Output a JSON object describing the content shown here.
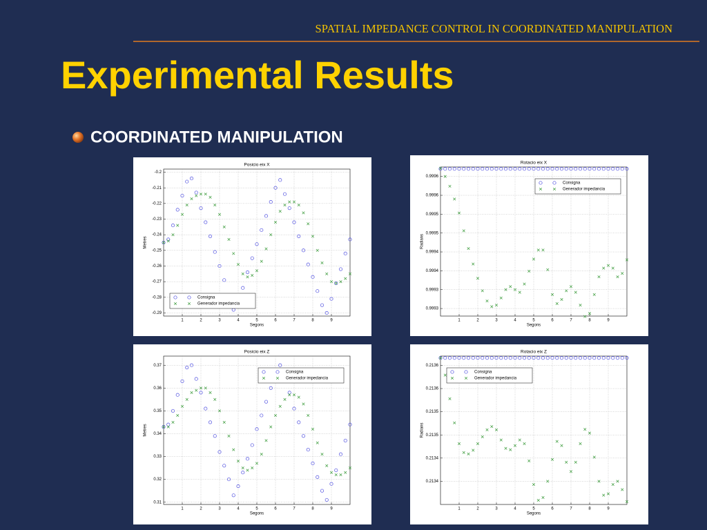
{
  "header": "SPATIAL IMPEDANCE CONTROL IN COORDINATED MANIPULATION",
  "title": "Experimental Results",
  "bullet": "COORDINATED MANIPULATION",
  "chart_data": [
    {
      "type": "scatter",
      "title": "Posicio eix X",
      "x_label": "Segons",
      "y_label": "Metres",
      "x": [
        0,
        0.25,
        0.5,
        0.75,
        1,
        1.25,
        1.5,
        1.75,
        2,
        2.25,
        2.5,
        2.75,
        3,
        3.25,
        3.5,
        3.75,
        4,
        4.25,
        4.5,
        4.75,
        5,
        5.25,
        5.5,
        5.75,
        6,
        6.25,
        6.5,
        6.75,
        7,
        7.25,
        7.5,
        7.75,
        8,
        8.25,
        8.5,
        8.75,
        9,
        9.25,
        9.5,
        9.75,
        10
      ],
      "xlim": [
        0,
        10
      ],
      "xticks": [
        1,
        2,
        3,
        4,
        5,
        6,
        7,
        8,
        9
      ],
      "ylim": [
        -0.292,
        -0.198
      ],
      "yticks": [
        -0.2,
        -0.21,
        -0.22,
        -0.23,
        -0.24,
        -0.25,
        -0.26,
        -0.27,
        -0.28,
        -0.29
      ],
      "grid": true,
      "legend": "lower left",
      "series": [
        {
          "name": "Consigna",
          "color": "#5050e0",
          "marker": "o",
          "values": [
            -0.245,
            -0.243,
            -0.234,
            -0.224,
            -0.215,
            -0.206,
            -0.204,
            -0.213,
            -0.223,
            -0.232,
            -0.241,
            -0.251,
            -0.26,
            -0.269,
            -0.279,
            -0.288,
            -0.283,
            -0.274,
            -0.264,
            -0.255,
            -0.246,
            -0.237,
            -0.228,
            -0.219,
            -0.21,
            -0.205,
            -0.214,
            -0.223,
            -0.232,
            -0.241,
            -0.25,
            -0.259,
            -0.267,
            -0.276,
            -0.285,
            -0.29,
            -0.281,
            -0.271,
            -0.262,
            -0.252,
            -0.243
          ]
        },
        {
          "name": "Generador impedancia",
          "color": "#3a9a3a",
          "marker": "x",
          "values": [
            -0.245,
            -0.244,
            -0.24,
            -0.234,
            -0.227,
            -0.221,
            -0.217,
            -0.215,
            -0.214,
            -0.214,
            -0.216,
            -0.221,
            -0.227,
            -0.235,
            -0.243,
            -0.252,
            -0.259,
            -0.265,
            -0.267,
            -0.266,
            -0.263,
            -0.257,
            -0.249,
            -0.24,
            -0.232,
            -0.225,
            -0.221,
            -0.219,
            -0.219,
            -0.221,
            -0.226,
            -0.233,
            -0.241,
            -0.25,
            -0.258,
            -0.265,
            -0.27,
            -0.271,
            -0.27,
            -0.268,
            -0.265
          ]
        }
      ]
    },
    {
      "type": "scatter",
      "title": "Rotacio eix X",
      "x_label": "Segons",
      "y_label": "Radians",
      "x": [
        0,
        0.25,
        0.5,
        0.75,
        1,
        1.25,
        1.5,
        1.75,
        2,
        2.25,
        2.5,
        2.75,
        3,
        3.25,
        3.5,
        3.75,
        4,
        4.25,
        4.5,
        4.75,
        5,
        5.25,
        5.5,
        5.75,
        6,
        6.25,
        6.5,
        6.75,
        7,
        7.25,
        7.5,
        7.75,
        8,
        8.25,
        8.5,
        8.75,
        9,
        9.25,
        9.5,
        9.75,
        10
      ],
      "xlim": [
        0,
        10
      ],
      "xticks": [
        1,
        2,
        3,
        4,
        5,
        6,
        7,
        8,
        9
      ],
      "ylim": [
        0.99925,
        0.999645
      ],
      "yticks": [
        {
          "value": 0.99962,
          "label": "0.9996"
        },
        {
          "value": 0.99957,
          "label": "0.9996"
        },
        {
          "value": 0.99952,
          "label": "0.9995"
        },
        {
          "value": 0.99947,
          "label": "0.9995"
        },
        {
          "value": 0.99942,
          "label": "0.9994"
        },
        {
          "value": 0.99937,
          "label": "0.9994"
        },
        {
          "value": 0.99932,
          "label": "0.9993"
        },
        {
          "value": 0.99927,
          "label": "0.9993"
        }
      ],
      "grid": true,
      "legend": "upper right",
      "series": [
        {
          "name": "Consigna",
          "color": "#5050e0",
          "marker": "o",
          "values": [
            0.99964,
            0.99964,
            0.99964,
            0.99964,
            0.99964,
            0.99964,
            0.99964,
            0.99964,
            0.99964,
            0.99964,
            0.99964,
            0.99964,
            0.99964,
            0.99964,
            0.99964,
            0.99964,
            0.99964,
            0.99964,
            0.99964,
            0.99964,
            0.99964,
            0.99964,
            0.99964,
            0.99964,
            0.99964,
            0.99964,
            0.99964,
            0.99964,
            0.99964,
            0.99964,
            0.99964,
            0.99964,
            0.99964,
            0.99964,
            0.99964,
            0.99964,
            0.99964,
            0.99964,
            0.99964,
            0.99964,
            0.99964
          ]
        },
        {
          "name": "Generador impedancia",
          "color": "#3a9a3a",
          "marker": "x",
          "values": [
            0.999642,
            0.99962,
            0.999594,
            0.99956,
            0.999523,
            0.999476,
            0.999429,
            0.999388,
            0.99935,
            0.999317,
            0.99929,
            0.999275,
            0.999279,
            0.999298,
            0.99932,
            0.999328,
            0.99932,
            0.999313,
            0.999335,
            0.999369,
            0.999401,
            0.999425,
            0.999425,
            0.999373,
            0.999307,
            0.999283,
            0.999294,
            0.999317,
            0.999328,
            0.999313,
            0.999279,
            0.999249,
            0.999257,
            0.999307,
            0.999354,
            0.999377,
            0.999384,
            0.999377,
            0.999354,
            0.999363,
            0.999399
          ]
        }
      ]
    },
    {
      "type": "scatter",
      "title": "Posicio eix Z",
      "x_label": "Segons",
      "y_label": "Metres",
      "x": [
        0,
        0.25,
        0.5,
        0.75,
        1,
        1.25,
        1.5,
        1.75,
        2,
        2.25,
        2.5,
        2.75,
        3,
        3.25,
        3.5,
        3.75,
        4,
        4.25,
        4.5,
        4.75,
        5,
        5.25,
        5.5,
        5.75,
        6,
        6.25,
        6.5,
        6.75,
        7,
        7.25,
        7.5,
        7.75,
        8,
        8.25,
        8.5,
        8.75,
        9,
        9.25,
        9.5,
        9.75,
        10
      ],
      "xlim": [
        0,
        10
      ],
      "xticks": [
        1,
        2,
        3,
        4,
        5,
        6,
        7,
        8,
        9
      ],
      "ylim": [
        0.309,
        0.374
      ],
      "yticks": [
        0.37,
        0.36,
        0.35,
        0.34,
        0.33,
        0.32,
        0.31
      ],
      "grid": true,
      "legend": "upper right",
      "series": [
        {
          "name": "Consigna",
          "color": "#5050e0",
          "marker": "o",
          "values": [
            0.343,
            0.344,
            0.35,
            0.357,
            0.363,
            0.369,
            0.37,
            0.364,
            0.358,
            0.351,
            0.345,
            0.339,
            0.332,
            0.326,
            0.32,
            0.313,
            0.317,
            0.323,
            0.329,
            0.335,
            0.342,
            0.348,
            0.354,
            0.36,
            0.366,
            0.37,
            0.364,
            0.358,
            0.351,
            0.345,
            0.339,
            0.333,
            0.327,
            0.321,
            0.315,
            0.311,
            0.318,
            0.324,
            0.331,
            0.337,
            0.344
          ]
        },
        {
          "name": "Generador impedancia",
          "color": "#3a9a3a",
          "marker": "x",
          "values": [
            0.343,
            0.343,
            0.345,
            0.348,
            0.352,
            0.355,
            0.358,
            0.359,
            0.36,
            0.36,
            0.358,
            0.355,
            0.35,
            0.345,
            0.339,
            0.333,
            0.328,
            0.325,
            0.324,
            0.325,
            0.327,
            0.331,
            0.337,
            0.343,
            0.348,
            0.352,
            0.355,
            0.357,
            0.357,
            0.356,
            0.353,
            0.348,
            0.342,
            0.336,
            0.331,
            0.326,
            0.323,
            0.322,
            0.322,
            0.323,
            0.325
          ]
        }
      ]
    },
    {
      "type": "scatter",
      "title": "Rotacio eix Z",
      "x_label": "Segons",
      "y_label": "Radians",
      "x": [
        0,
        0.25,
        0.5,
        0.75,
        1,
        1.25,
        1.5,
        1.75,
        2,
        2.25,
        2.5,
        2.75,
        3,
        3.25,
        3.5,
        3.75,
        4,
        4.25,
        4.5,
        4.75,
        5,
        5.25,
        5.5,
        5.75,
        6,
        6.25,
        6.5,
        6.75,
        7,
        7.25,
        7.5,
        7.75,
        8,
        8.25,
        8.5,
        8.75,
        9,
        9.25,
        9.5,
        9.75,
        10
      ],
      "xlim": [
        0,
        10
      ],
      "xticks": [
        1,
        2,
        3,
        4,
        5,
        6,
        7,
        8,
        9
      ],
      "ylim": [
        0.21332,
        0.21364
      ],
      "yticks": [
        {
          "value": 0.21362,
          "label": "0.2136"
        },
        {
          "value": 0.21357,
          "label": "0.2136"
        },
        {
          "value": 0.21352,
          "label": "0.2135"
        },
        {
          "value": 0.21347,
          "label": "0.2135"
        },
        {
          "value": 0.21342,
          "label": "0.2134"
        },
        {
          "value": 0.21337,
          "label": "0.2134"
        }
      ],
      "grid": true,
      "legend": "upper left",
      "series": [
        {
          "name": "Consigna",
          "color": "#5050e0",
          "marker": "o",
          "values": [
            0.213636,
            0.213636,
            0.213636,
            0.213636,
            0.213636,
            0.213636,
            0.213636,
            0.213636,
            0.213636,
            0.213636,
            0.213636,
            0.213636,
            0.213636,
            0.213636,
            0.213636,
            0.213636,
            0.213636,
            0.213636,
            0.213636,
            0.213636,
            0.213636,
            0.213636,
            0.213636,
            0.213636,
            0.213636,
            0.213636,
            0.213636,
            0.213636,
            0.213636,
            0.213636,
            0.213636,
            0.213636,
            0.213636,
            0.213636,
            0.213636,
            0.213636,
            0.213636,
            0.213636,
            0.213636,
            0.213636,
            0.213636
          ]
        },
        {
          "name": "Generador impedancia",
          "color": "#3a9a3a",
          "marker": "x",
          "values": [
            0.213636,
            0.213599,
            0.213548,
            0.213496,
            0.213451,
            0.213432,
            0.213429,
            0.213437,
            0.213451,
            0.213466,
            0.213481,
            0.213488,
            0.213481,
            0.213459,
            0.213441,
            0.213438,
            0.213447,
            0.213459,
            0.213451,
            0.213414,
            0.213363,
            0.213329,
            0.213335,
            0.21337,
            0.213417,
            0.213456,
            0.213447,
            0.213411,
            0.213391,
            0.213411,
            0.213451,
            0.213482,
            0.213474,
            0.213422,
            0.21337,
            0.21334,
            0.213343,
            0.213363,
            0.21337,
            0.213352,
            0.213326
          ]
        }
      ]
    }
  ]
}
